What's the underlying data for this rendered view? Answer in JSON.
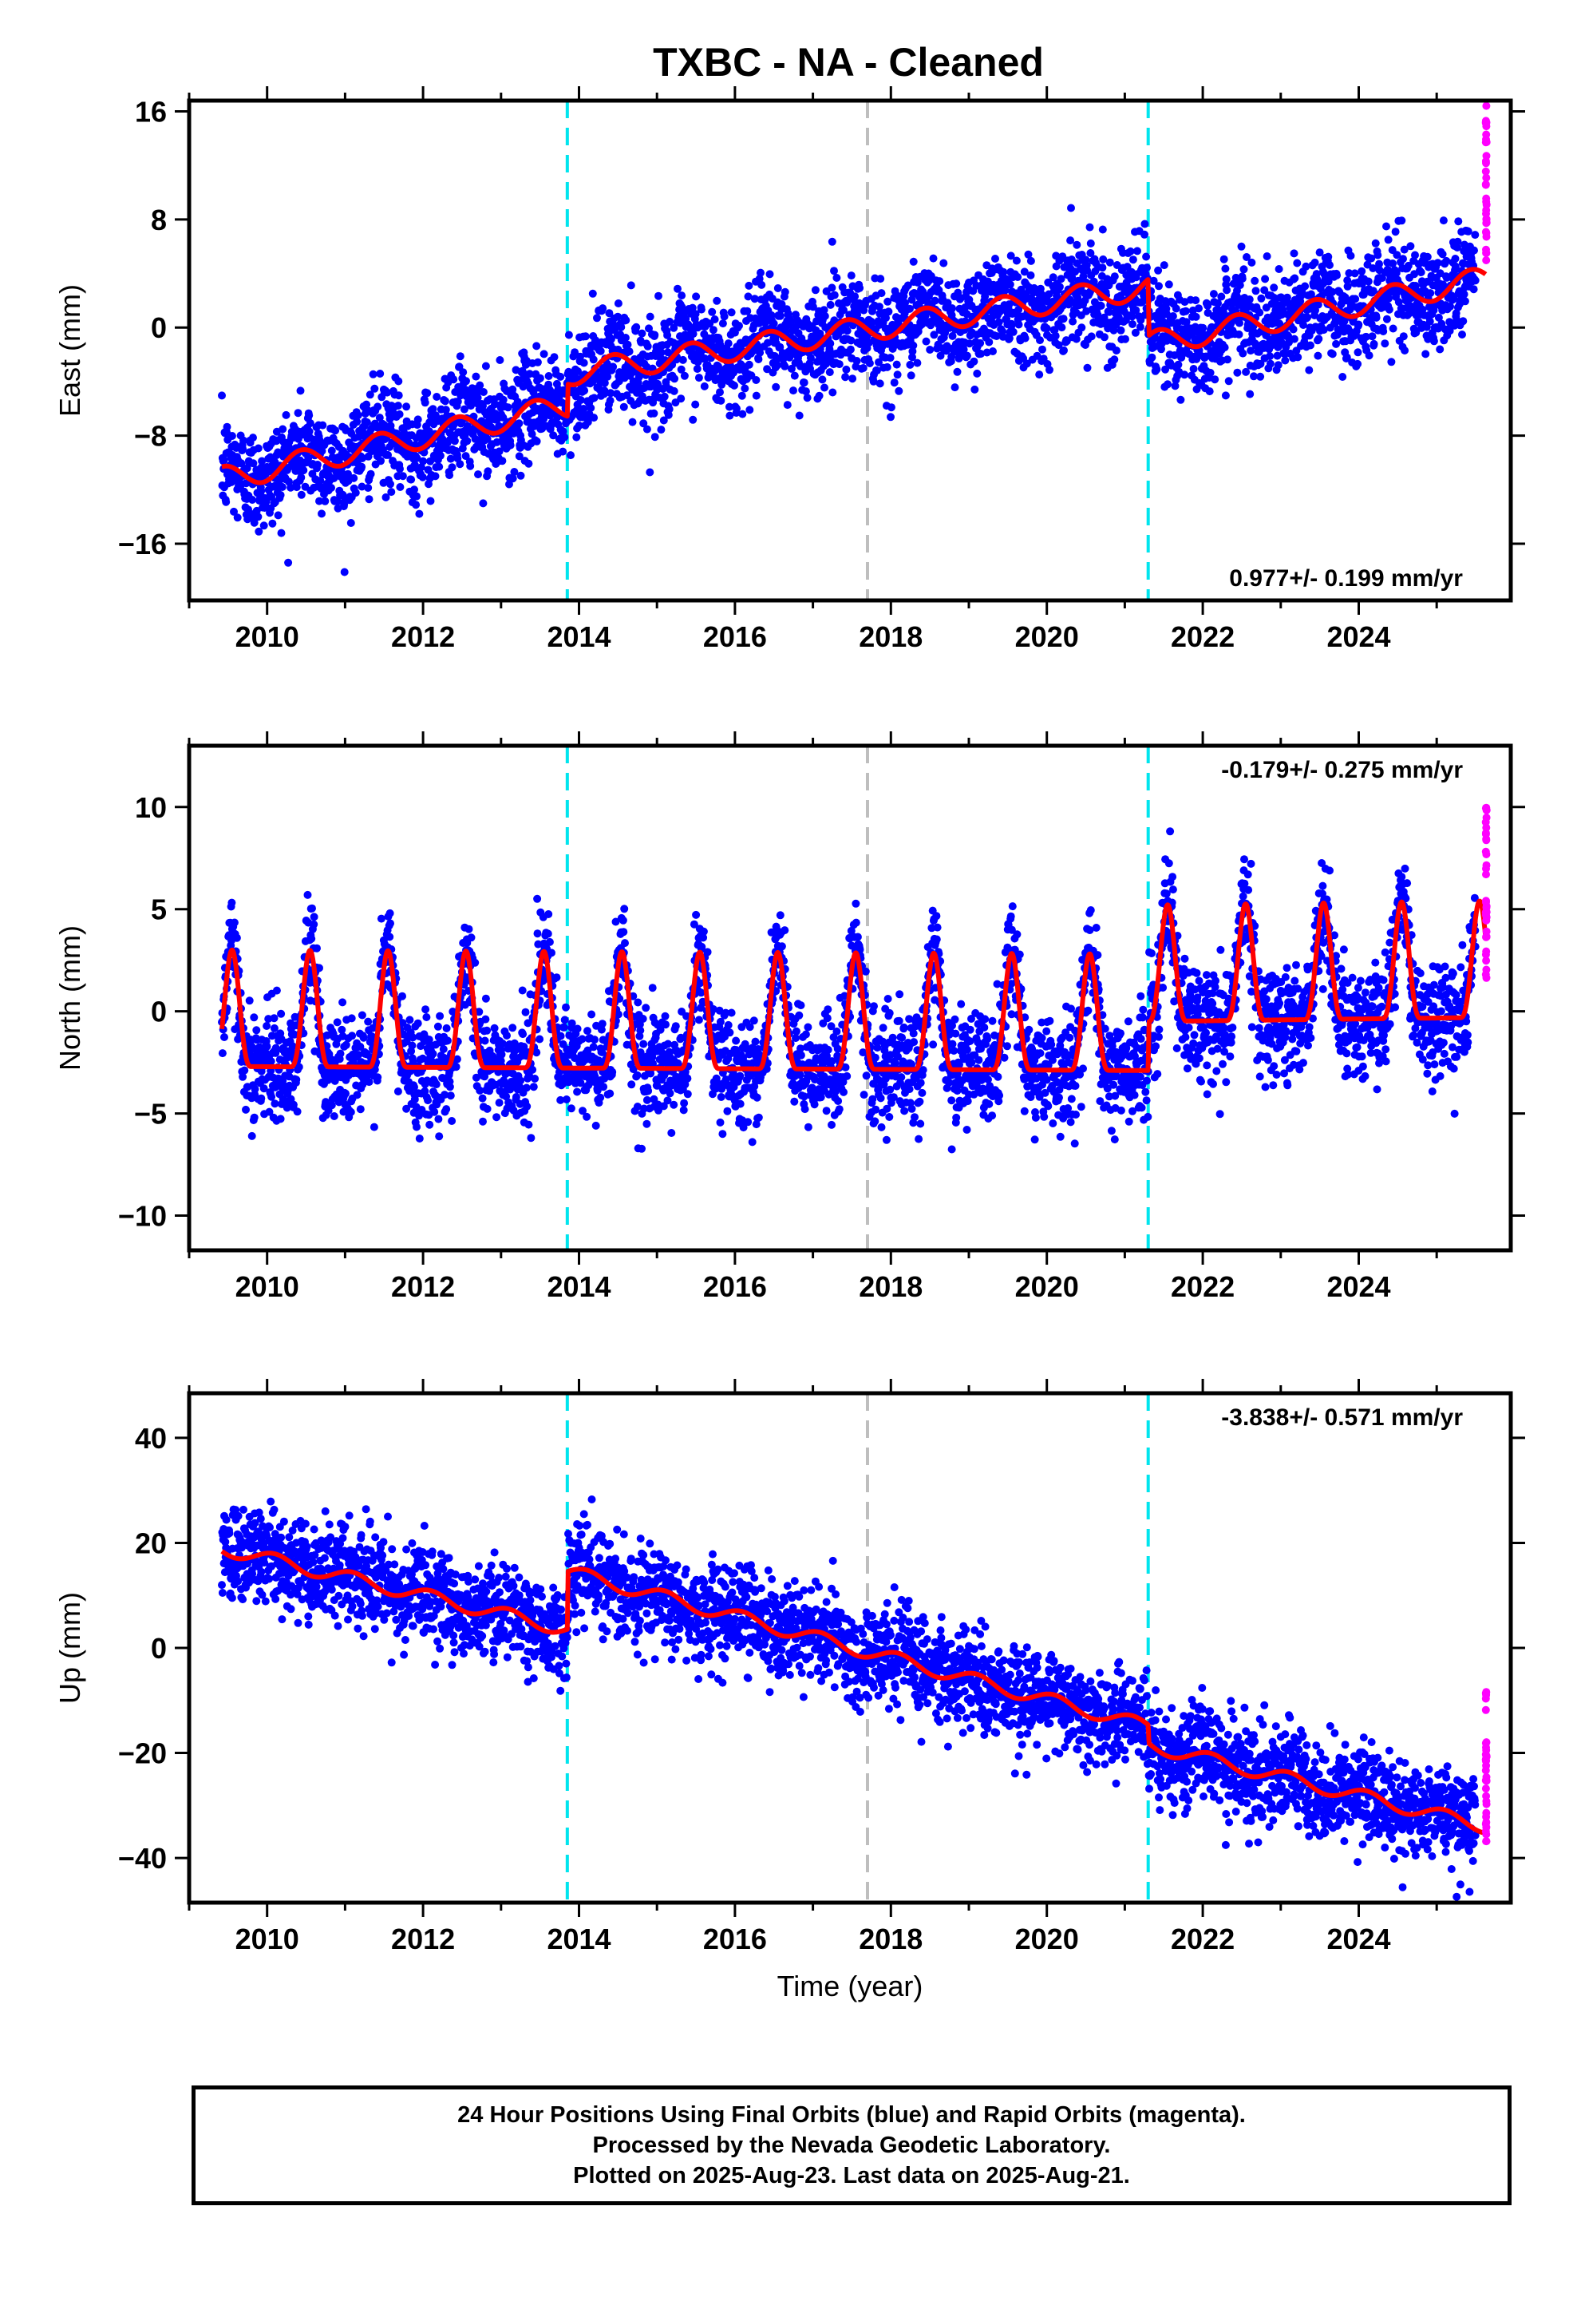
{
  "title": "TXBC  - NA - Cleaned",
  "footer": {
    "line1": "24 Hour Positions Using Final Orbits (blue) and Rapid Orbits (magenta).",
    "line2": "Processed by the Nevada Geodetic Laboratory.",
    "line3": "Plotted on 2025-Aug-23. Last data on 2025-Aug-21."
  },
  "colors": {
    "final_orbit_points": "#0000ff",
    "rapid_orbit_points": "#ff00ff",
    "model_fit": "#ff0000",
    "equipment_change_line": "#00e5ee",
    "other_event_line": "#bebebe",
    "frame": "#000000"
  },
  "chart_data": [
    {
      "type": "scatter",
      "panel": "east",
      "ylabel": "East (mm)",
      "xlabel": "",
      "xlim": [
        2009.0,
        2025.95
      ],
      "ylim": [
        -20.2,
        16.8
      ],
      "xticks": [
        2010,
        2012,
        2014,
        2016,
        2018,
        2020,
        2022,
        2024
      ],
      "xtick_labels": [
        "2010",
        "2012",
        "2014",
        "2016",
        "2018",
        "2020",
        "2022",
        "2024"
      ],
      "yticks": [
        -16,
        -8,
        0,
        8,
        16
      ],
      "ytick_labels": [
        "−16",
        "−8",
        "0",
        "8",
        "16"
      ],
      "rate_label": "0.977+/- 0.199 mm/yr",
      "rate_label_position": "bottom-right",
      "data_range": [
        2009.42,
        2025.63
      ],
      "rapid_range": [
        2025.5,
        2025.64
      ],
      "rapid_ylim": [
        4.0,
        16.5
      ],
      "noise_mm": 1.9,
      "trend_points": [
        [
          2009.42,
          -11.2
        ],
        [
          2013.85,
          -5.8
        ],
        [
          2013.86,
          -3.4
        ],
        [
          2021.3,
          3.0
        ],
        [
          2021.31,
          -1.2
        ],
        [
          2025.63,
          3.6
        ]
      ],
      "model_amplitude_mm": 0.9,
      "events": [
        {
          "x": 2013.85,
          "kind": "equipment"
        },
        {
          "x": 2017.7,
          "kind": "other"
        },
        {
          "x": 2021.3,
          "kind": "equipment"
        }
      ]
    },
    {
      "type": "scatter",
      "panel": "north",
      "ylabel": "North (mm)",
      "xlabel": "",
      "xlim": [
        2009.0,
        2025.95
      ],
      "ylim": [
        -11.7,
        13.0
      ],
      "xticks": [
        2010,
        2012,
        2014,
        2016,
        2018,
        2020,
        2022,
        2024
      ],
      "xtick_labels": [
        "2010",
        "2012",
        "2014",
        "2016",
        "2018",
        "2020",
        "2022",
        "2024"
      ],
      "yticks": [
        -10,
        -5,
        0,
        5,
        10
      ],
      "ytick_labels": [
        "−10",
        "−5",
        "0",
        "5",
        "10"
      ],
      "rate_label": "-0.179+/- 0.275 mm/yr",
      "rate_label_position": "top-right",
      "data_range": [
        2009.42,
        2025.63
      ],
      "rapid_range": [
        2025.5,
        2025.64
      ],
      "rapid_ylim": [
        1.5,
        10.0
      ],
      "noise_mm": 1.3,
      "trend_points": [
        [
          2009.42,
          -0.6
        ],
        [
          2021.3,
          -0.8
        ],
        [
          2021.31,
          1.6
        ],
        [
          2025.63,
          1.8
        ]
      ],
      "model_amplitude_mm": 3.0,
      "events": [
        {
          "x": 2013.85,
          "kind": "equipment"
        },
        {
          "x": 2017.7,
          "kind": "other"
        },
        {
          "x": 2021.3,
          "kind": "equipment"
        }
      ]
    },
    {
      "type": "scatter",
      "panel": "up",
      "ylabel": "Up (mm)",
      "xlabel": "Time (year)",
      "xlim": [
        2009.0,
        2025.95
      ],
      "ylim": [
        -48.5,
        48.5
      ],
      "xticks": [
        2010,
        2012,
        2014,
        2016,
        2018,
        2020,
        2022,
        2024
      ],
      "xtick_labels": [
        "2010",
        "2012",
        "2014",
        "2016",
        "2018",
        "2020",
        "2022",
        "2024"
      ],
      "yticks": [
        -40,
        -20,
        0,
        20,
        40
      ],
      "ytick_labels": [
        "−40",
        "−20",
        "0",
        "20",
        "40"
      ],
      "rate_label": "-3.838+/- 0.571 mm/yr",
      "rate_label_position": "top-right",
      "data_range": [
        2009.42,
        2025.63
      ],
      "rapid_range": [
        2025.5,
        2025.64
      ],
      "rapid_ylim": [
        -37.0,
        -8.0
      ],
      "noise_mm": 4.5,
      "trend_points": [
        [
          2009.42,
          19.0
        ],
        [
          2013.85,
          3.5
        ],
        [
          2013.86,
          14.5
        ],
        [
          2021.3,
          -15.0
        ],
        [
          2021.31,
          -18.5
        ],
        [
          2025.63,
          -34.0
        ]
      ],
      "model_amplitude_mm": 1.3,
      "events": [
        {
          "x": 2013.85,
          "kind": "equipment"
        },
        {
          "x": 2017.7,
          "kind": "other"
        },
        {
          "x": 2021.3,
          "kind": "equipment"
        }
      ]
    }
  ]
}
